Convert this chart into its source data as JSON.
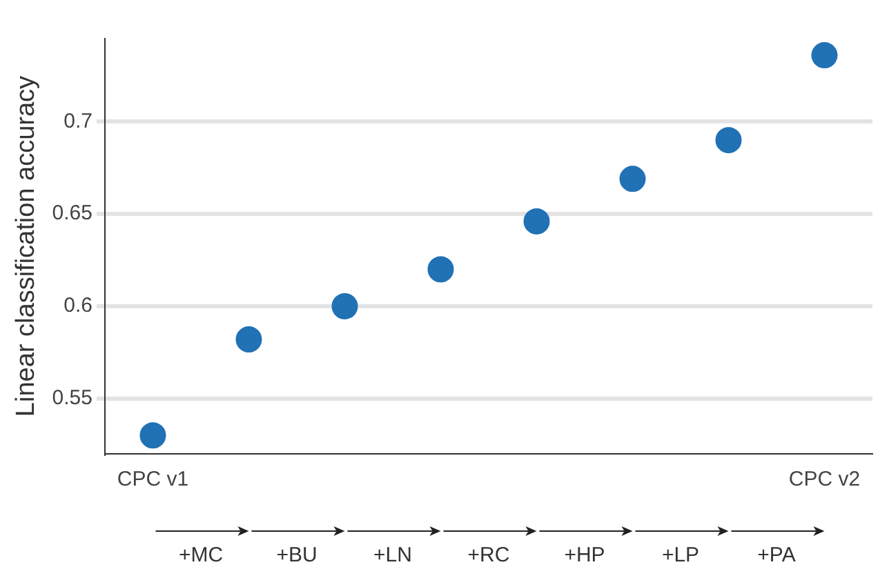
{
  "chart_data": {
    "type": "scatter",
    "ylabel": "Linear classification accuracy",
    "categories": [
      "CPC v1",
      null,
      null,
      null,
      null,
      null,
      null,
      "CPC v2"
    ],
    "series": [
      {
        "color": "#2171b5",
        "values": [
          0.53,
          0.582,
          0.6,
          0.62,
          0.646,
          0.669,
          0.69,
          0.736
        ]
      }
    ],
    "ylim": [
      0.52,
      0.745
    ],
    "yticks": [
      0.55,
      0.6,
      0.65,
      0.7
    ],
    "annotations": [
      "+MC",
      "+BU",
      "+LN",
      "+RC",
      "+HP",
      "+LP",
      "+PA"
    ],
    "grid": "y",
    "marker": "circle",
    "legend": false
  }
}
